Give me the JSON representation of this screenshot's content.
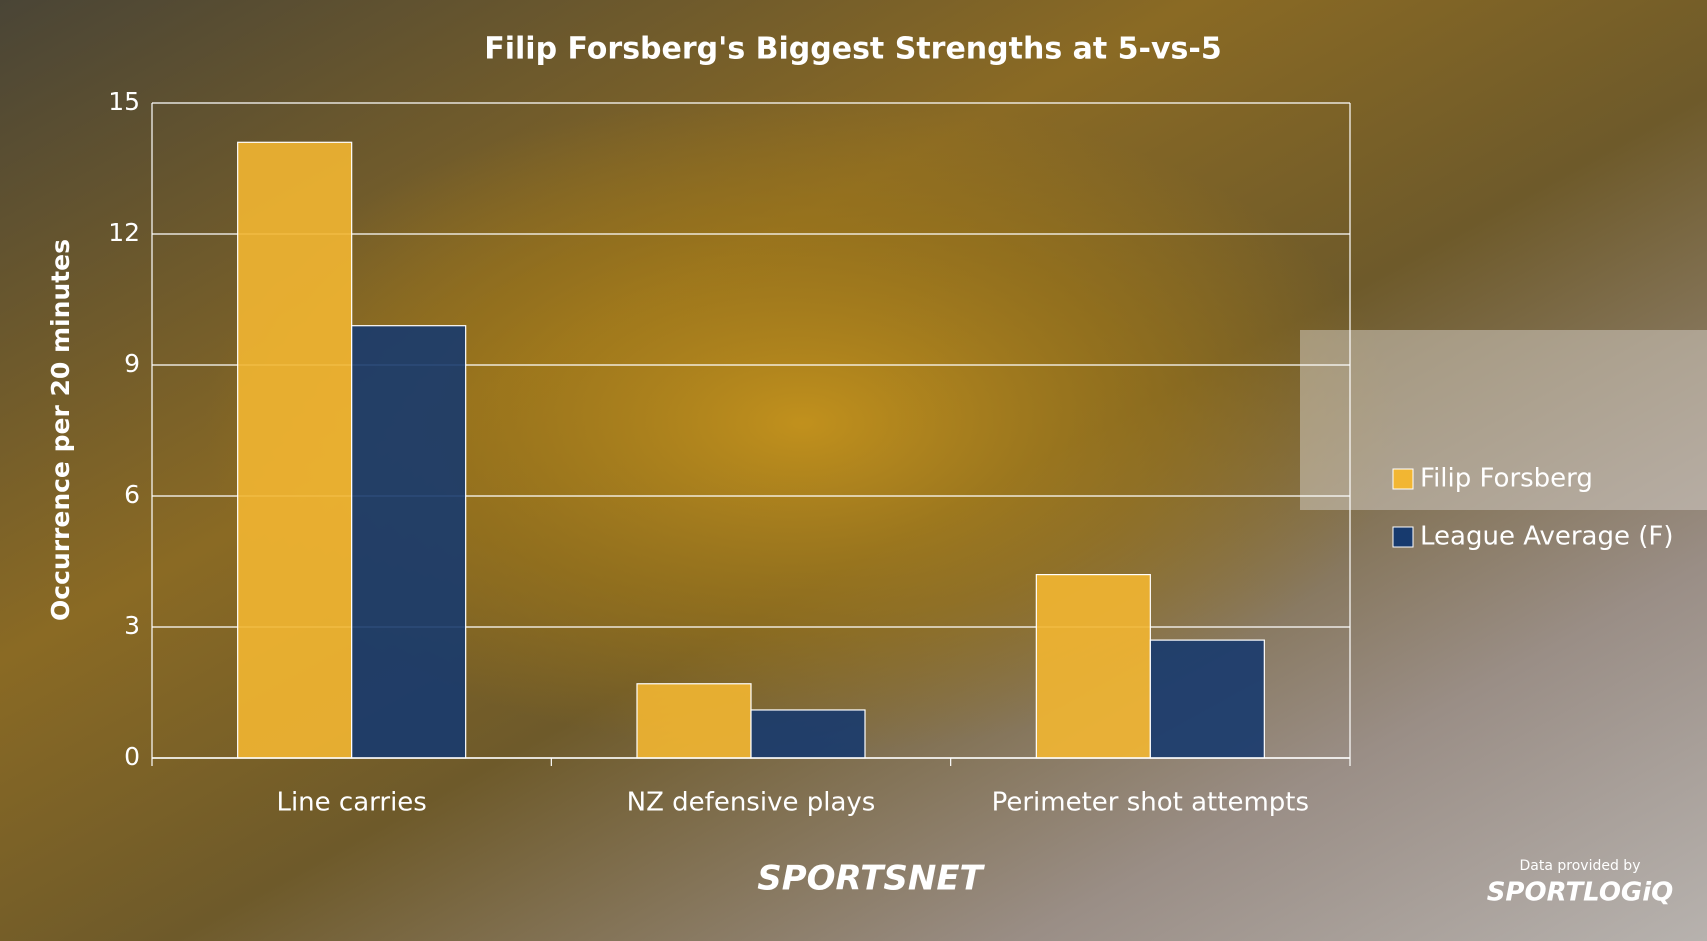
{
  "chart_data": {
    "type": "bar",
    "title": "Filip Forsberg's Biggest Strengths at 5-vs-5",
    "y_label": "Occurrence per 20 minutes",
    "categories": [
      "Line carries",
      "NZ defensive plays",
      "Perimeter shot attempts"
    ],
    "series": [
      {
        "name": "Filip Forsberg",
        "color": "#f2b632",
        "values": [
          14.1,
          1.7,
          4.2
        ]
      },
      {
        "name": "League Average (F)",
        "color": "#173a6e",
        "values": [
          9.9,
          1.1,
          2.7
        ]
      }
    ],
    "ylim": [
      0,
      15
    ],
    "yticks": [
      0,
      3,
      6,
      9,
      12,
      15
    ],
    "grid": true,
    "legend": "right",
    "credits": {
      "brand": "SPORTSNET",
      "data_note": "Data provided by",
      "logo": "SPORTLOGiQ"
    }
  }
}
